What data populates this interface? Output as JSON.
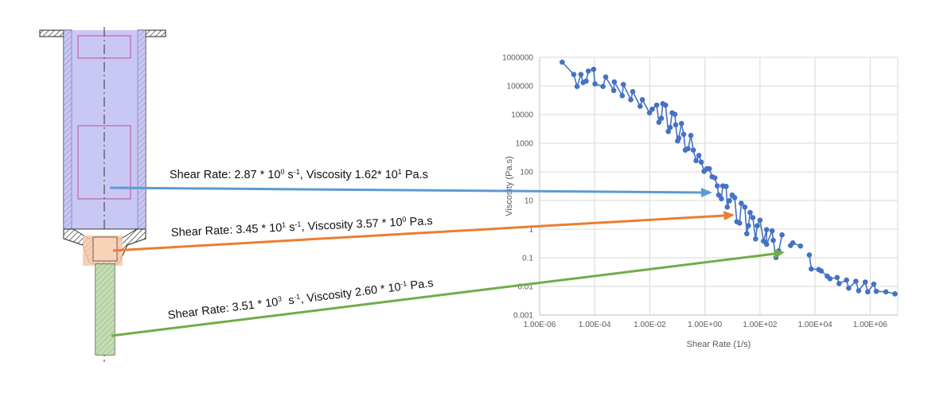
{
  "annotations": {
    "labels": [
      {
        "parts": [
          "Shear Rate: 2.87 * 10",
          "0",
          " s",
          "-1",
          ", Viscosity 1.62* 10",
          "1",
          " Pa.s"
        ],
        "color": "#5b9bd5"
      },
      {
        "parts": [
          "Shear Rate: 3.45 * 10",
          "1",
          " s",
          "-1",
          ", Viscosity 3.57 * 10",
          "0",
          " Pa.s"
        ],
        "color": "#ed7d31"
      },
      {
        "parts": [
          "Shear Rate: 3.51 * 10",
          "3",
          "  s",
          "-1",
          ", Viscosity 2.60 * 10",
          "-1",
          " Pa.s"
        ],
        "color": "#70ad47"
      }
    ]
  },
  "syringe": {
    "barrel_color": "#b7b5f2",
    "neck_color": "#f6c8a8",
    "needle_color": "#b5d6a0"
  },
  "chart_data": {
    "type": "scatter",
    "xlabel": "Shear Rate (1/s)",
    "ylabel": "Viscosity (Pa.s)",
    "xscale": "log",
    "yscale": "log",
    "xlim": [
      1e-06,
      10000000.0
    ],
    "ylim": [
      0.001,
      1000000
    ],
    "grid": true,
    "x_tick_labels": [
      "1.00E-06",
      "1.00E-04",
      "1.00E-02",
      "1.00E+00",
      "1.00E+02",
      "1.00E+04",
      "1.00E+06"
    ],
    "y_tick_labels": [
      "1000000",
      "100000",
      "10000",
      "1000",
      "100",
      "10",
      "1",
      "0.1",
      "0.01",
      "0.001"
    ],
    "series_color": "#4472c4",
    "series_note": "points as [log10(shear rate), log10(viscosity)], segments are connected runs",
    "segments": [
      [
        [
          -5.18,
          5.83
        ],
        [
          -4.76,
          5.4
        ],
        [
          -4.64,
          4.98
        ],
        [
          -4.5,
          5.4
        ],
        [
          -4.42,
          5.12
        ],
        [
          -4.31,
          5.17
        ],
        [
          -4.23,
          5.52
        ],
        [
          -4.04,
          5.58
        ],
        [
          -3.99,
          5.07
        ],
        [
          -3.7,
          4.98
        ],
        [
          -3.6,
          5.31
        ],
        [
          -3.31,
          4.84
        ],
        [
          -3.29,
          5.14
        ],
        [
          -3.0,
          4.66
        ],
        [
          -2.96,
          5.05
        ],
        [
          -2.69,
          4.52
        ],
        [
          -2.62,
          4.8
        ],
        [
          -2.35,
          4.29
        ],
        [
          -2.27,
          4.52
        ],
        [
          -2.01,
          4.06
        ],
        [
          -1.91,
          4.19
        ],
        [
          -1.75,
          4.33
        ],
        [
          -1.67,
          3.73
        ],
        [
          -1.58,
          3.87
        ],
        [
          -1.53,
          4.38
        ],
        [
          -1.43,
          4.33
        ],
        [
          -1.33,
          3.41
        ],
        [
          -1.26,
          3.55
        ],
        [
          -1.19,
          4.06
        ],
        [
          -1.09,
          4.01
        ],
        [
          -1.06,
          3.64
        ],
        [
          -0.99,
          3.08
        ],
        [
          -0.95,
          3.18
        ],
        [
          -0.85,
          3.69
        ],
        [
          -0.77,
          3.31
        ],
        [
          -0.71,
          2.76
        ],
        [
          -0.61,
          2.81
        ],
        [
          -0.51,
          3.27
        ],
        [
          -0.42,
          2.76
        ],
        [
          -0.32,
          2.39
        ],
        [
          -0.22,
          2.57
        ],
        [
          -0.13,
          2.34
        ],
        [
          -0.03,
          2.02
        ],
        [
          0.07,
          2.11
        ],
        [
          0.16,
          2.11
        ],
        [
          0.26,
          1.83
        ],
        [
          0.36,
          1.79
        ],
        [
          0.45,
          1.51
        ],
        [
          0.5,
          1.19
        ],
        [
          0.6,
          1.06
        ],
        [
          0.65,
          1.51
        ],
        [
          0.77,
          1.49
        ],
        [
          0.81,
          0.77
        ],
        [
          0.89,
          0.99
        ],
        [
          0.99,
          1.19
        ],
        [
          1.08,
          1.1
        ],
        [
          1.16,
          0.26
        ],
        [
          1.26,
          0.21
        ],
        [
          1.32,
          0.9
        ],
        [
          1.45,
          0.77
        ],
        [
          1.52,
          -0.16
        ],
        [
          1.58,
          0.12
        ],
        [
          1.64,
          0.58
        ],
        [
          1.74,
          0.4
        ],
        [
          1.84,
          -0.34
        ],
        [
          1.9,
          0.12
        ],
        [
          2.0,
          0.31
        ],
        [
          2.13,
          -0.42
        ],
        [
          2.24,
          -0.02
        ],
        [
          2.24,
          -0.53
        ],
        [
          2.44,
          -0.06
        ],
        [
          2.48,
          -0.39
        ],
        [
          2.58,
          -0.99
        ],
        [
          2.68,
          -0.76
        ],
        [
          2.8,
          -0.2
        ]
      ],
      [
        [
          3.11,
          -0.57
        ],
        [
          3.19,
          -0.48
        ],
        [
          3.47,
          -0.59
        ]
      ],
      [
        [
          3.79,
          -0.9
        ],
        [
          3.86,
          -1.39
        ],
        [
          4.13,
          -1.41
        ],
        [
          4.22,
          -1.46
        ],
        [
          4.44,
          -1.64
        ],
        [
          4.54,
          -1.73
        ],
        [
          4.8,
          -1.69
        ],
        [
          4.87,
          -1.9
        ],
        [
          5.14,
          -1.78
        ],
        [
          5.22,
          -2.06
        ],
        [
          5.48,
          -1.82
        ],
        [
          5.58,
          -2.15
        ],
        [
          5.82,
          -1.85
        ],
        [
          5.91,
          -2.19
        ],
        [
          6.13,
          -1.92
        ],
        [
          6.22,
          -2.17
        ],
        [
          6.57,
          -2.19
        ],
        [
          6.9,
          -2.26
        ]
      ]
    ]
  }
}
